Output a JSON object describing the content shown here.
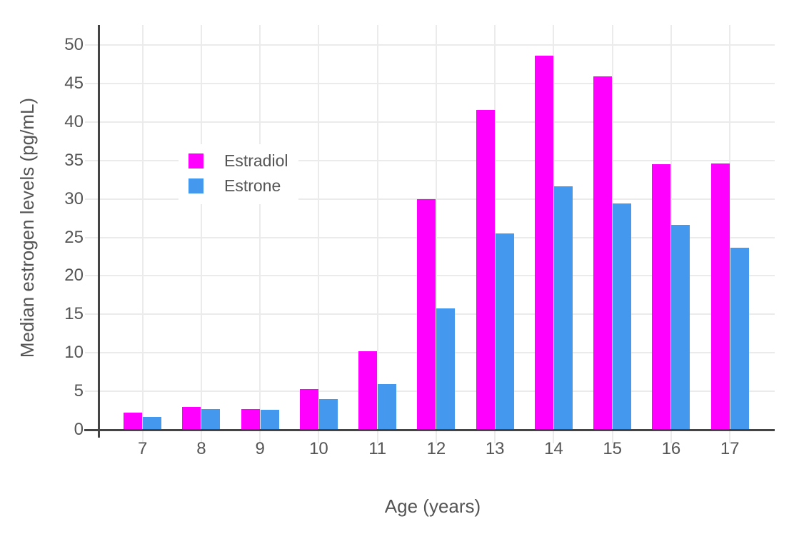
{
  "chart_data": {
    "type": "bar",
    "title": "",
    "xlabel": "Age (years)",
    "ylabel": "Median estrogen levels (pg/mL)",
    "categories": [
      "7",
      "8",
      "9",
      "10",
      "11",
      "12",
      "13",
      "14",
      "15",
      "16",
      "17"
    ],
    "series": [
      {
        "name": "Estradiol",
        "color": "#FF00FF",
        "values": [
          2.2,
          3.0,
          2.7,
          5.3,
          10.2,
          30.0,
          41.6,
          48.6,
          45.9,
          34.5,
          34.6
        ]
      },
      {
        "name": "Estrone",
        "color": "#4498EE",
        "values": [
          1.7,
          2.7,
          2.6,
          4.0,
          5.9,
          15.8,
          25.5,
          31.6,
          29.4,
          26.6,
          23.7
        ]
      }
    ],
    "ylim": [
      0,
      52.6
    ],
    "yticks": [
      0,
      5,
      10,
      15,
      20,
      25,
      30,
      35,
      40,
      45,
      50
    ],
    "grid": true,
    "legend_position": "inside-top-left",
    "background_color": "#FFFFFF",
    "grid_color": "#EBEBEB",
    "axis_line_color": "#444444",
    "text_color": "#555555"
  }
}
